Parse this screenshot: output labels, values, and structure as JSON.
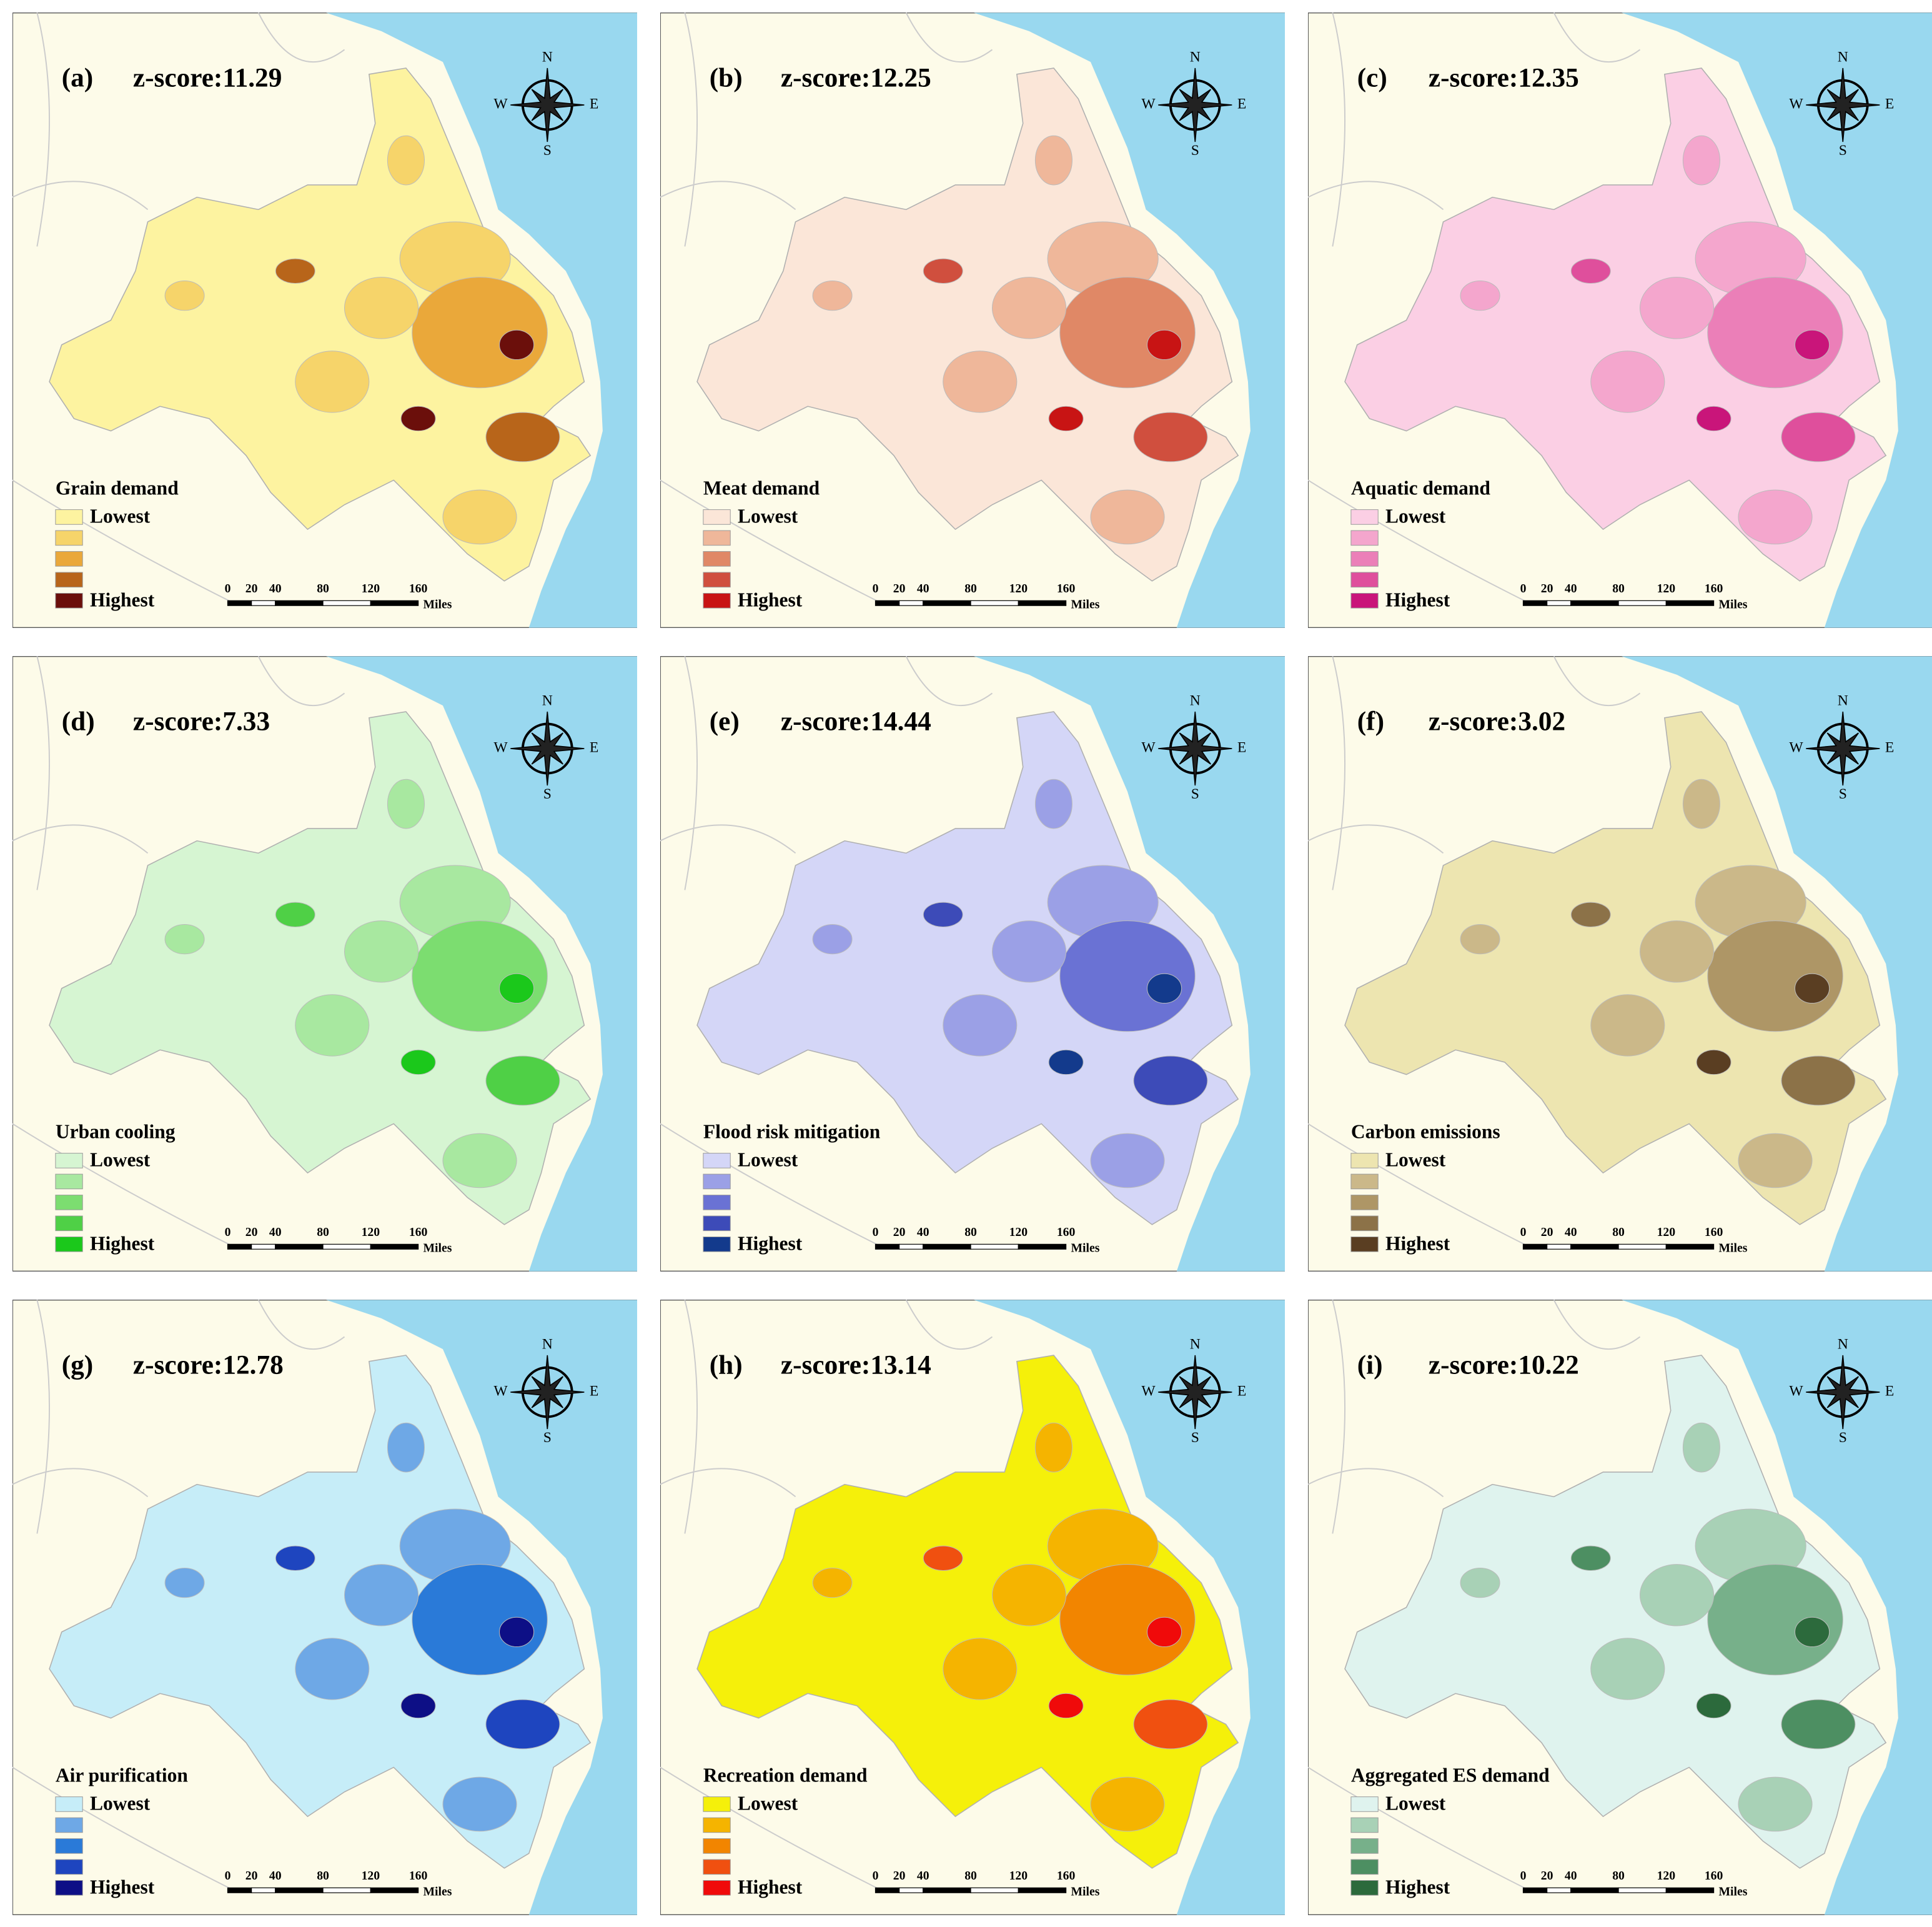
{
  "panels": [
    {
      "label": "(a)",
      "zscore": "z-score:11.29",
      "legend_title": "Grain demand",
      "colors": [
        "#fdf3a0",
        "#f6d46a",
        "#eaa83a",
        "#b8651a",
        "#6b0f0b"
      ]
    },
    {
      "label": "(b)",
      "zscore": "z-score:12.25",
      "legend_title": "Meat demand",
      "colors": [
        "#fbe6d8",
        "#efb79a",
        "#e08866",
        "#d04f3e",
        "#c81414"
      ]
    },
    {
      "label": "(c)",
      "zscore": "z-score:12.35",
      "legend_title": "Aquatic demand",
      "colors": [
        "#fbcfe4",
        "#f4a6cd",
        "#eb7fb8",
        "#df4f9c",
        "#c9157a"
      ]
    },
    {
      "label": "(d)",
      "zscore": "z-score:7.33",
      "legend_title": "Urban cooling",
      "colors": [
        "#d6f5d2",
        "#a8e8a0",
        "#7cdd70",
        "#4fd046",
        "#1bc81b"
      ]
    },
    {
      "label": "(e)",
      "zscore": "z-score:14.44",
      "legend_title": "Flood risk mitigation",
      "colors": [
        "#d4d6f7",
        "#9ba0e6",
        "#6a72d4",
        "#3d4bb8",
        "#133a8c"
      ]
    },
    {
      "label": "(f)",
      "zscore": "z-score:3.02",
      "legend_title": "Carbon emissions",
      "colors": [
        "#ede5b0",
        "#cbb889",
        "#ae9666",
        "#8c7248",
        "#5a3e22"
      ]
    },
    {
      "label": "(g)",
      "zscore": "z-score:12.78",
      "legend_title": "Air purification",
      "colors": [
        "#c6edf8",
        "#6ea8e6",
        "#2a7ad8",
        "#1e45bf",
        "#0d0f86"
      ]
    },
    {
      "label": "(h)",
      "zscore": "z-score:13.14",
      "legend_title": "Recreation demand",
      "colors": [
        "#f5f00a",
        "#f5b400",
        "#f28500",
        "#f05010",
        "#f00a0a"
      ]
    },
    {
      "label": "(i)",
      "zscore": "z-score:10.22",
      "legend_title": "Aggregated ES demand",
      "colors": [
        "#dff3ee",
        "#a8d1b6",
        "#77b08a",
        "#4d8f62",
        "#2c6a3c"
      ]
    }
  ],
  "legend_low": "Lowest",
  "legend_high": "Highest",
  "scale_ticks": [
    0,
    20,
    40,
    80,
    120,
    160
  ],
  "scale_unit": "Miles",
  "compass": {
    "n": "N",
    "s": "S",
    "e": "E",
    "w": "W"
  }
}
